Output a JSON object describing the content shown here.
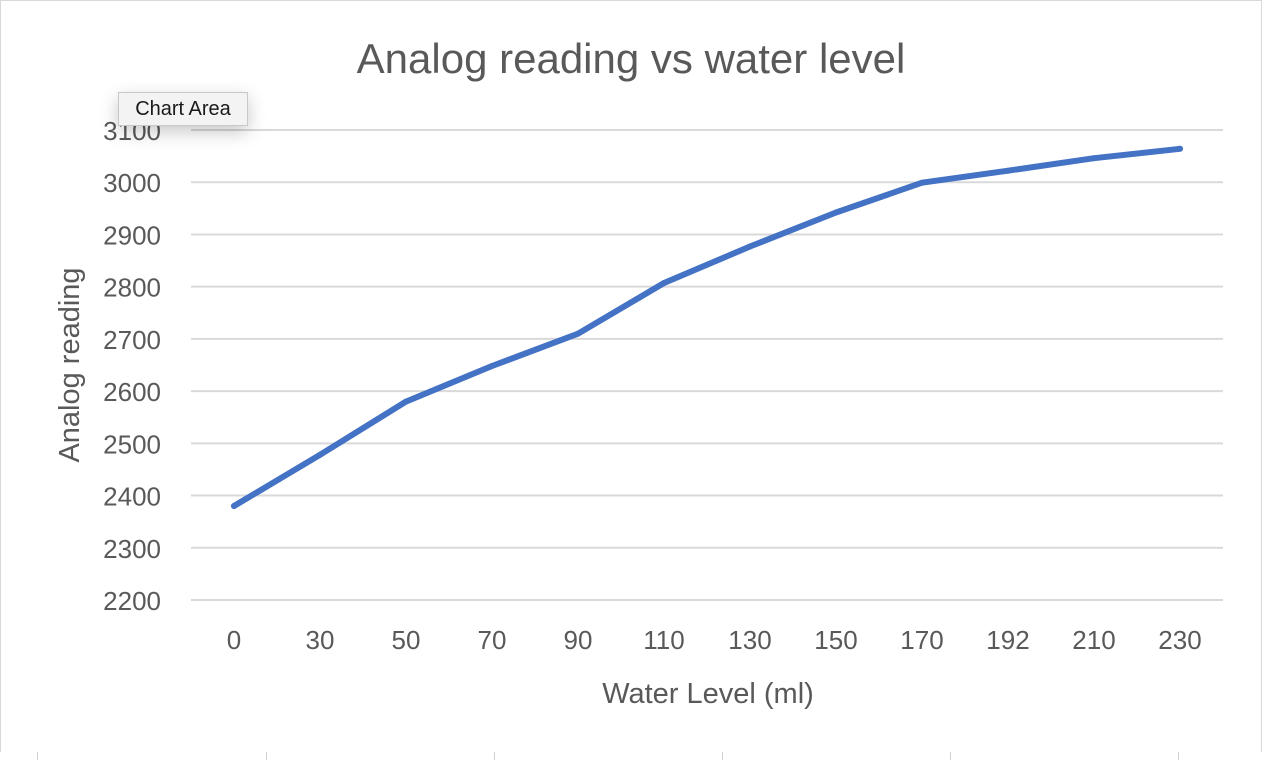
{
  "chart_data": {
    "type": "line",
    "title": "Analog reading vs water level",
    "xlabel": "Water Level (ml)",
    "ylabel": "Analog reading",
    "categories": [
      "0",
      "30",
      "50",
      "70",
      "90",
      "110",
      "130",
      "150",
      "170",
      "192",
      "210",
      "230"
    ],
    "series": [
      {
        "values": [
          2380,
          2478,
          2580,
          2648,
          2710,
          2807,
          2877,
          2942,
          2999,
          3022,
          3046,
          3064
        ]
      }
    ],
    "ylim": [
      2200,
      3100
    ],
    "yticks": [
      "2200",
      "2300",
      "2400",
      "2500",
      "2600",
      "2700",
      "2800",
      "2900",
      "3000",
      "3100"
    ],
    "grid": true,
    "line_color": "#4472c4",
    "grid_color": "#d9d9d9",
    "text_color": "#595959"
  },
  "tooltip": {
    "label": "Chart Area"
  }
}
